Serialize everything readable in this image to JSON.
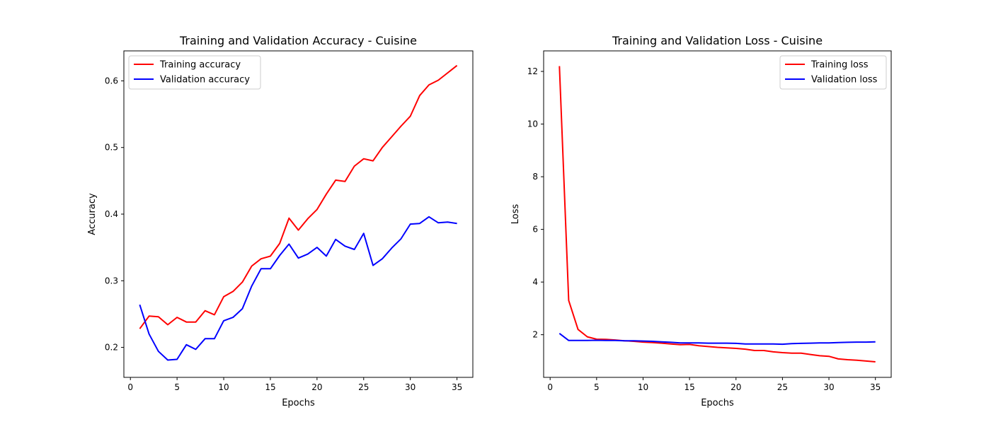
{
  "chart_data": [
    {
      "type": "line",
      "title": "Training and Validation Accuracy - Cuisine",
      "xlabel": "Epochs",
      "ylabel": "Accuracy",
      "xlim": [
        -0.7,
        36.7
      ],
      "ylim": [
        0.155,
        0.645
      ],
      "xticks": [
        0,
        5,
        10,
        15,
        20,
        25,
        30,
        35
      ],
      "yticks": [
        0.2,
        0.3,
        0.4,
        0.5,
        0.6
      ],
      "xtick_labels": [
        "0",
        "5",
        "10",
        "15",
        "20",
        "25",
        "30",
        "35"
      ],
      "ytick_labels": [
        "0.2",
        "0.3",
        "0.4",
        "0.5",
        "0.6"
      ],
      "grid": false,
      "legend_position": "upper left",
      "x": [
        1,
        2,
        3,
        4,
        5,
        6,
        7,
        8,
        9,
        10,
        11,
        12,
        13,
        14,
        15,
        16,
        17,
        18,
        19,
        20,
        21,
        22,
        23,
        24,
        25,
        26,
        27,
        28,
        29,
        30,
        31,
        32,
        33,
        34,
        35
      ],
      "series": [
        {
          "name": "Training accuracy",
          "color": "#ff0000",
          "values": [
            0.228,
            0.247,
            0.246,
            0.234,
            0.245,
            0.238,
            0.238,
            0.255,
            0.249,
            0.276,
            0.284,
            0.298,
            0.322,
            0.333,
            0.337,
            0.356,
            0.394,
            0.376,
            0.393,
            0.407,
            0.43,
            0.451,
            0.449,
            0.472,
            0.483,
            0.48,
            0.5,
            0.516,
            0.532,
            0.547,
            0.578,
            0.594,
            0.601,
            0.612,
            0.623
          ]
        },
        {
          "name": "Validation accuracy",
          "color": "#0000ff",
          "values": [
            0.264,
            0.22,
            0.194,
            0.181,
            0.182,
            0.204,
            0.197,
            0.213,
            0.213,
            0.24,
            0.245,
            0.258,
            0.292,
            0.318,
            0.318,
            0.338,
            0.355,
            0.334,
            0.34,
            0.35,
            0.337,
            0.362,
            0.352,
            0.347,
            0.371,
            0.323,
            0.333,
            0.349,
            0.363,
            0.385,
            0.386,
            0.396,
            0.387,
            0.388,
            0.386
          ]
        }
      ]
    },
    {
      "type": "line",
      "title": "Training and Validation Loss - Cuisine",
      "xlabel": "Epochs",
      "ylabel": "Loss",
      "xlim": [
        -0.7,
        36.7
      ],
      "ylim": [
        0.38,
        12.78
      ],
      "xticks": [
        0,
        5,
        10,
        15,
        20,
        25,
        30,
        35
      ],
      "yticks": [
        2,
        4,
        6,
        8,
        10,
        12
      ],
      "xtick_labels": [
        "0",
        "5",
        "10",
        "15",
        "20",
        "25",
        "30",
        "35"
      ],
      "ytick_labels": [
        "2",
        "4",
        "6",
        "8",
        "10",
        "12"
      ],
      "grid": false,
      "legend_position": "upper right",
      "x": [
        1,
        2,
        3,
        4,
        5,
        6,
        7,
        8,
        9,
        10,
        11,
        12,
        13,
        14,
        15,
        16,
        17,
        18,
        19,
        20,
        21,
        22,
        23,
        24,
        25,
        26,
        27,
        28,
        29,
        30,
        31,
        32,
        33,
        34,
        35
      ],
      "series": [
        {
          "name": "Training loss",
          "color": "#ff0000",
          "values": [
            12.2,
            3.3,
            2.2,
            1.92,
            1.83,
            1.82,
            1.8,
            1.77,
            1.75,
            1.72,
            1.7,
            1.68,
            1.65,
            1.62,
            1.63,
            1.58,
            1.55,
            1.52,
            1.5,
            1.48,
            1.45,
            1.4,
            1.4,
            1.35,
            1.32,
            1.3,
            1.3,
            1.25,
            1.2,
            1.18,
            1.08,
            1.05,
            1.03,
            1.0,
            0.97
          ]
        },
        {
          "name": "Validation loss",
          "color": "#0000ff",
          "values": [
            2.05,
            1.78,
            1.78,
            1.78,
            1.79,
            1.78,
            1.78,
            1.77,
            1.77,
            1.76,
            1.75,
            1.73,
            1.71,
            1.69,
            1.69,
            1.69,
            1.68,
            1.68,
            1.68,
            1.67,
            1.65,
            1.65,
            1.65,
            1.65,
            1.64,
            1.66,
            1.67,
            1.68,
            1.69,
            1.69,
            1.7,
            1.71,
            1.72,
            1.72,
            1.73
          ]
        }
      ]
    }
  ]
}
